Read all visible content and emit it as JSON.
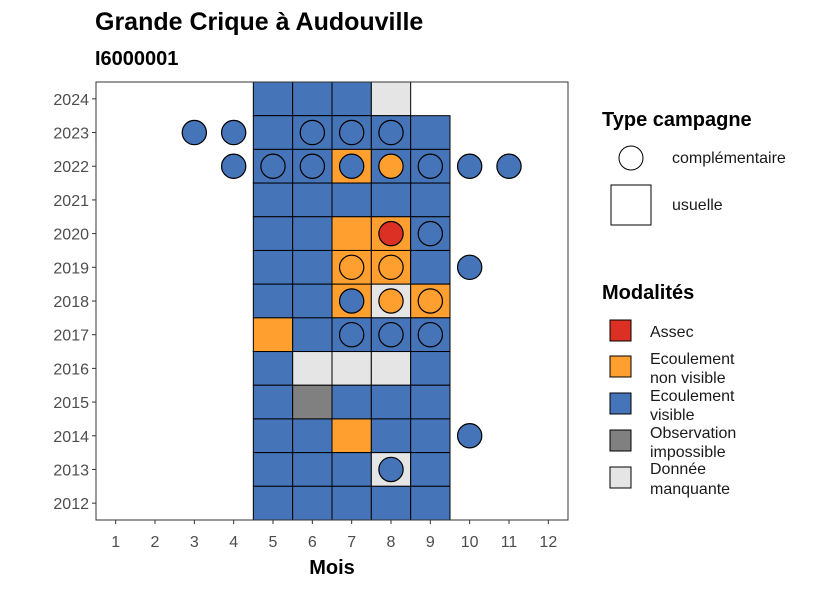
{
  "chart_data": {
    "type": "heatmap",
    "title": "Grande Crique à Audouville",
    "subtitle": "I6000001",
    "xlabel": "Mois",
    "ylabel": "",
    "x_ticks": [
      "1",
      "2",
      "3",
      "4",
      "5",
      "6",
      "7",
      "8",
      "9",
      "10",
      "11",
      "12"
    ],
    "y_ticks": [
      "2012",
      "2013",
      "2014",
      "2015",
      "2016",
      "2017",
      "2018",
      "2019",
      "2020",
      "2021",
      "2022",
      "2023",
      "2024"
    ],
    "xlim": [
      0.5,
      12.5
    ],
    "ylim": [
      2011.5,
      2024.5
    ],
    "grid": false,
    "colors": {
      "Assec": "#dd3024",
      "Ecoulement non visible": "#fe9f2f",
      "Ecoulement visible": "#4674b9",
      "Observation impossible": "#808080",
      "Donnée manquante": "#e5e5e5"
    },
    "legend_type": {
      "title": "Type campagne",
      "entries": [
        {
          "shape": "circle",
          "label": "complémentaire"
        },
        {
          "shape": "square",
          "label": "usuelle"
        }
      ]
    },
    "legend_modalites": {
      "title": "Modalités",
      "entries": [
        {
          "key": "Assec",
          "lines": [
            "Assec"
          ]
        },
        {
          "key": "Ecoulement non visible",
          "lines": [
            "Ecoulement",
            "non visible"
          ]
        },
        {
          "key": "Ecoulement visible",
          "lines": [
            "Ecoulement",
            "visible"
          ]
        },
        {
          "key": "Observation impossible",
          "lines": [
            "Observation",
            "impossible"
          ]
        },
        {
          "key": "Donnée manquante",
          "lines": [
            "Donnée",
            "manquante"
          ]
        }
      ]
    },
    "usuelle": [
      {
        "year": 2024,
        "month": 5,
        "m": "Ecoulement visible"
      },
      {
        "year": 2024,
        "month": 6,
        "m": "Ecoulement visible"
      },
      {
        "year": 2024,
        "month": 7,
        "m": "Ecoulement visible"
      },
      {
        "year": 2024,
        "month": 8,
        "m": "Donnée manquante"
      },
      {
        "year": 2023,
        "month": 5,
        "m": "Ecoulement visible"
      },
      {
        "year": 2023,
        "month": 6,
        "m": "Ecoulement visible"
      },
      {
        "year": 2023,
        "month": 7,
        "m": "Ecoulement visible"
      },
      {
        "year": 2023,
        "month": 8,
        "m": "Ecoulement visible"
      },
      {
        "year": 2023,
        "month": 9,
        "m": "Ecoulement visible"
      },
      {
        "year": 2022,
        "month": 5,
        "m": "Ecoulement visible"
      },
      {
        "year": 2022,
        "month": 6,
        "m": "Ecoulement visible"
      },
      {
        "year": 2022,
        "month": 7,
        "m": "Ecoulement non visible"
      },
      {
        "year": 2022,
        "month": 8,
        "m": "Ecoulement visible"
      },
      {
        "year": 2022,
        "month": 9,
        "m": "Ecoulement visible"
      },
      {
        "year": 2021,
        "month": 5,
        "m": "Ecoulement visible"
      },
      {
        "year": 2021,
        "month": 6,
        "m": "Ecoulement visible"
      },
      {
        "year": 2021,
        "month": 7,
        "m": "Ecoulement visible"
      },
      {
        "year": 2021,
        "month": 8,
        "m": "Ecoulement visible"
      },
      {
        "year": 2021,
        "month": 9,
        "m": "Ecoulement visible"
      },
      {
        "year": 2020,
        "month": 5,
        "m": "Ecoulement visible"
      },
      {
        "year": 2020,
        "month": 6,
        "m": "Ecoulement visible"
      },
      {
        "year": 2020,
        "month": 7,
        "m": "Ecoulement non visible"
      },
      {
        "year": 2020,
        "month": 8,
        "m": "Ecoulement non visible"
      },
      {
        "year": 2020,
        "month": 9,
        "m": "Ecoulement visible"
      },
      {
        "year": 2019,
        "month": 5,
        "m": "Ecoulement visible"
      },
      {
        "year": 2019,
        "month": 6,
        "m": "Ecoulement visible"
      },
      {
        "year": 2019,
        "month": 7,
        "m": "Ecoulement non visible"
      },
      {
        "year": 2019,
        "month": 8,
        "m": "Ecoulement non visible"
      },
      {
        "year": 2019,
        "month": 9,
        "m": "Ecoulement visible"
      },
      {
        "year": 2018,
        "month": 5,
        "m": "Ecoulement visible"
      },
      {
        "year": 2018,
        "month": 6,
        "m": "Ecoulement visible"
      },
      {
        "year": 2018,
        "month": 7,
        "m": "Ecoulement non visible"
      },
      {
        "year": 2018,
        "month": 8,
        "m": "Donnée manquante"
      },
      {
        "year": 2018,
        "month": 9,
        "m": "Ecoulement non visible"
      },
      {
        "year": 2017,
        "month": 5,
        "m": "Ecoulement non visible"
      },
      {
        "year": 2017,
        "month": 6,
        "m": "Ecoulement visible"
      },
      {
        "year": 2017,
        "month": 7,
        "m": "Ecoulement visible"
      },
      {
        "year": 2017,
        "month": 8,
        "m": "Ecoulement visible"
      },
      {
        "year": 2017,
        "month": 9,
        "m": "Ecoulement visible"
      },
      {
        "year": 2016,
        "month": 5,
        "m": "Ecoulement visible"
      },
      {
        "year": 2016,
        "month": 6,
        "m": "Donnée manquante"
      },
      {
        "year": 2016,
        "month": 7,
        "m": "Donnée manquante"
      },
      {
        "year": 2016,
        "month": 8,
        "m": "Donnée manquante"
      },
      {
        "year": 2016,
        "month": 9,
        "m": "Ecoulement visible"
      },
      {
        "year": 2015,
        "month": 5,
        "m": "Ecoulement visible"
      },
      {
        "year": 2015,
        "month": 6,
        "m": "Observation impossible"
      },
      {
        "year": 2015,
        "month": 7,
        "m": "Ecoulement visible"
      },
      {
        "year": 2015,
        "month": 8,
        "m": "Ecoulement visible"
      },
      {
        "year": 2015,
        "month": 9,
        "m": "Ecoulement visible"
      },
      {
        "year": 2014,
        "month": 5,
        "m": "Ecoulement visible"
      },
      {
        "year": 2014,
        "month": 6,
        "m": "Ecoulement visible"
      },
      {
        "year": 2014,
        "month": 7,
        "m": "Ecoulement non visible"
      },
      {
        "year": 2014,
        "month": 8,
        "m": "Ecoulement visible"
      },
      {
        "year": 2014,
        "month": 9,
        "m": "Ecoulement visible"
      },
      {
        "year": 2013,
        "month": 5,
        "m": "Ecoulement visible"
      },
      {
        "year": 2013,
        "month": 6,
        "m": "Ecoulement visible"
      },
      {
        "year": 2013,
        "month": 7,
        "m": "Ecoulement visible"
      },
      {
        "year": 2013,
        "month": 8,
        "m": "Donnée manquante"
      },
      {
        "year": 2013,
        "month": 9,
        "m": "Ecoulement visible"
      },
      {
        "year": 2012,
        "month": 5,
        "m": "Ecoulement visible"
      },
      {
        "year": 2012,
        "month": 6,
        "m": "Ecoulement visible"
      },
      {
        "year": 2012,
        "month": 7,
        "m": "Ecoulement visible"
      },
      {
        "year": 2012,
        "month": 8,
        "m": "Ecoulement visible"
      },
      {
        "year": 2012,
        "month": 9,
        "m": "Ecoulement visible"
      }
    ],
    "complementaire": [
      {
        "year": 2023,
        "month": 3,
        "m": "Ecoulement visible"
      },
      {
        "year": 2023,
        "month": 4,
        "m": "Ecoulement visible"
      },
      {
        "year": 2023,
        "month": 6,
        "m": "Ecoulement visible"
      },
      {
        "year": 2023,
        "month": 7,
        "m": "Ecoulement visible"
      },
      {
        "year": 2023,
        "month": 8,
        "m": "Ecoulement visible"
      },
      {
        "year": 2022,
        "month": 4,
        "m": "Ecoulement visible"
      },
      {
        "year": 2022,
        "month": 5,
        "m": "Ecoulement visible"
      },
      {
        "year": 2022,
        "month": 6,
        "m": "Ecoulement visible"
      },
      {
        "year": 2022,
        "month": 7,
        "m": "Ecoulement visible"
      },
      {
        "year": 2022,
        "month": 8,
        "m": "Ecoulement non visible"
      },
      {
        "year": 2022,
        "month": 9,
        "m": "Ecoulement visible"
      },
      {
        "year": 2022,
        "month": 10,
        "m": "Ecoulement visible"
      },
      {
        "year": 2022,
        "month": 11,
        "m": "Ecoulement visible"
      },
      {
        "year": 2020,
        "month": 8,
        "m": "Assec"
      },
      {
        "year": 2020,
        "month": 9,
        "m": "Ecoulement visible"
      },
      {
        "year": 2019,
        "month": 7,
        "m": "Ecoulement non visible"
      },
      {
        "year": 2019,
        "month": 8,
        "m": "Ecoulement non visible"
      },
      {
        "year": 2019,
        "month": 10,
        "m": "Ecoulement visible"
      },
      {
        "year": 2018,
        "month": 7,
        "m": "Ecoulement visible"
      },
      {
        "year": 2018,
        "month": 8,
        "m": "Ecoulement non visible"
      },
      {
        "year": 2018,
        "month": 9,
        "m": "Ecoulement non visible"
      },
      {
        "year": 2017,
        "month": 7,
        "m": "Ecoulement visible"
      },
      {
        "year": 2017,
        "month": 8,
        "m": "Ecoulement visible"
      },
      {
        "year": 2017,
        "month": 9,
        "m": "Ecoulement visible"
      },
      {
        "year": 2014,
        "month": 10,
        "m": "Ecoulement visible"
      },
      {
        "year": 2013,
        "month": 8,
        "m": "Ecoulement visible"
      }
    ]
  }
}
